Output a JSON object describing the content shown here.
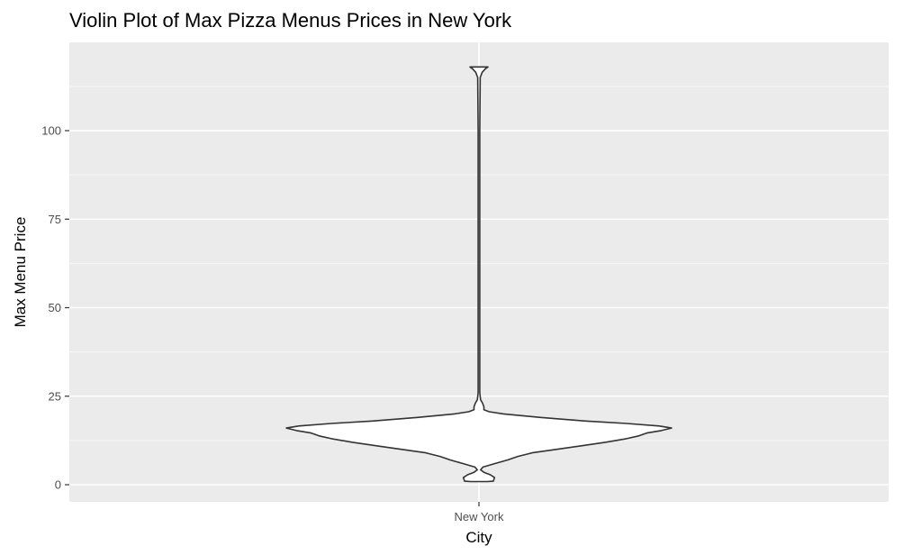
{
  "chart_data": {
    "type": "violin",
    "title": "Violin Plot of Max Pizza Menus Prices in New York",
    "xlabel": "City",
    "ylabel": "Max Menu Price",
    "categories": [
      "New York"
    ],
    "y_ticks": [
      0,
      25,
      50,
      75,
      100
    ],
    "ylim": [
      -5,
      124
    ],
    "grid": true,
    "violin": {
      "category": "New York",
      "profile": [
        {
          "y": 0.9,
          "w": 0.02
        },
        {
          "y": 1.0,
          "w": 0.035
        },
        {
          "y": 2.0,
          "w": 0.038
        },
        {
          "y": 2.8,
          "w": 0.028
        },
        {
          "y": 3.5,
          "w": 0.012
        },
        {
          "y": 4.2,
          "w": 0.004
        },
        {
          "y": 5.0,
          "w": 0.01
        },
        {
          "y": 6.0,
          "w": 0.04
        },
        {
          "y": 7.0,
          "w": 0.07
        },
        {
          "y": 8.0,
          "w": 0.095
        },
        {
          "y": 9.0,
          "w": 0.13
        },
        {
          "y": 10.0,
          "w": 0.19
        },
        {
          "y": 11.0,
          "w": 0.25
        },
        {
          "y": 12.0,
          "w": 0.31
        },
        {
          "y": 13.0,
          "w": 0.36
        },
        {
          "y": 13.8,
          "w": 0.39
        },
        {
          "y": 14.6,
          "w": 0.41
        },
        {
          "y": 15.3,
          "w": 0.445
        },
        {
          "y": 16.0,
          "w": 0.47
        },
        {
          "y": 16.6,
          "w": 0.44
        },
        {
          "y": 17.3,
          "w": 0.36
        },
        {
          "y": 18.0,
          "w": 0.26
        },
        {
          "y": 19.0,
          "w": 0.15
        },
        {
          "y": 20.0,
          "w": 0.06
        },
        {
          "y": 20.6,
          "w": 0.025
        },
        {
          "y": 21.2,
          "w": 0.012
        },
        {
          "y": 22.0,
          "w": 0.012
        },
        {
          "y": 23.0,
          "w": 0.009
        },
        {
          "y": 24.0,
          "w": 0.004
        },
        {
          "y": 26.0,
          "w": 0.002
        },
        {
          "y": 50.0,
          "w": 0.002
        },
        {
          "y": 100.0,
          "w": 0.002
        },
        {
          "y": 115.0,
          "w": 0.003
        },
        {
          "y": 116.5,
          "w": 0.008
        },
        {
          "y": 117.5,
          "w": 0.016
        },
        {
          "y": 118.0,
          "w": 0.022
        }
      ]
    }
  }
}
